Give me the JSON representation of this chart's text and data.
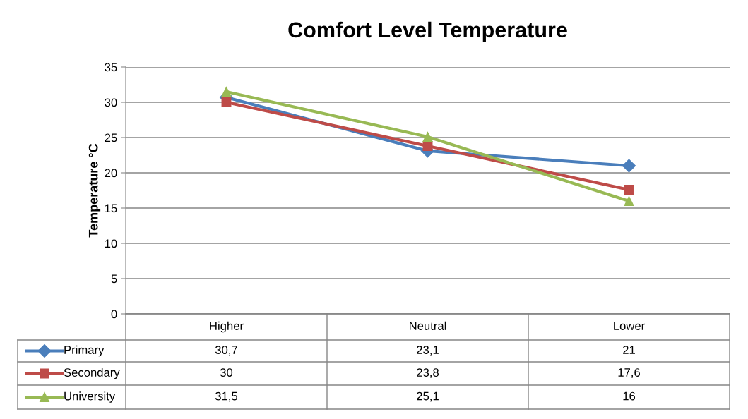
{
  "chart_data": {
    "type": "line",
    "title": "Comfort Level Temperature",
    "ylabel": "Temperature °C",
    "categories": [
      "Higher",
      "Neutral",
      "Lower"
    ],
    "series": [
      {
        "name": "Primary",
        "color": "#4a7ebb",
        "marker": "diamond",
        "values": [
          30.7,
          23.1,
          21
        ],
        "value_labels": [
          "30,7",
          "23,1",
          "21"
        ]
      },
      {
        "name": "Secondary",
        "color": "#be4b48",
        "marker": "square",
        "values": [
          30,
          23.8,
          17.6
        ],
        "value_labels": [
          "30",
          "23,8",
          "17,6"
        ]
      },
      {
        "name": "University",
        "color": "#98b954",
        "marker": "triangle",
        "values": [
          31.5,
          25.1,
          16
        ],
        "value_labels": [
          "31,5",
          "25,1",
          "16"
        ]
      }
    ],
    "ylim": [
      0,
      35
    ],
    "yticks": [
      0,
      5,
      10,
      15,
      20,
      25,
      30,
      35
    ],
    "grid": "y",
    "legend": "bottom",
    "line_style": "solid"
  }
}
